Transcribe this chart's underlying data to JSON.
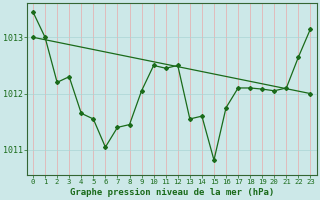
{
  "xlabel": "Graphe pression niveau de la mer (hPa)",
  "background_color": "#cce8e8",
  "line_color": "#1a6b1a",
  "grid_color_v": "#e8aaaa",
  "grid_color_h": "#aad4d4",
  "ylim": [
    1010.55,
    1013.6
  ],
  "xlim": [
    -0.5,
    23.5
  ],
  "yticks": [
    1011,
    1012,
    1013
  ],
  "xticks": [
    0,
    1,
    2,
    3,
    4,
    5,
    6,
    7,
    8,
    9,
    10,
    11,
    12,
    13,
    14,
    15,
    16,
    17,
    18,
    19,
    20,
    21,
    22,
    23
  ],
  "main_x": [
    0,
    1,
    2,
    3,
    4,
    5,
    6,
    7,
    8,
    9,
    10,
    11,
    12,
    13,
    14,
    15,
    16,
    17,
    18,
    19,
    20,
    21,
    22,
    23
  ],
  "main_y": [
    1013.45,
    1013.0,
    1012.2,
    1012.3,
    1011.65,
    1011.55,
    1011.05,
    1011.4,
    1011.45,
    1012.05,
    1012.5,
    1012.45,
    1012.5,
    1011.55,
    1011.6,
    1010.82,
    1011.75,
    1012.1,
    1012.1,
    1012.08,
    1012.05,
    1012.1,
    1012.65,
    1013.15
  ],
  "trend_x": [
    0,
    23
  ],
  "trend_y": [
    1013.0,
    1012.0
  ],
  "marker": "D",
  "markersize": 2.0,
  "linewidth": 0.9,
  "xlabel_fontsize": 6.5,
  "ytick_fontsize": 6,
  "xtick_fontsize": 5.2,
  "spine_color": "#336633"
}
